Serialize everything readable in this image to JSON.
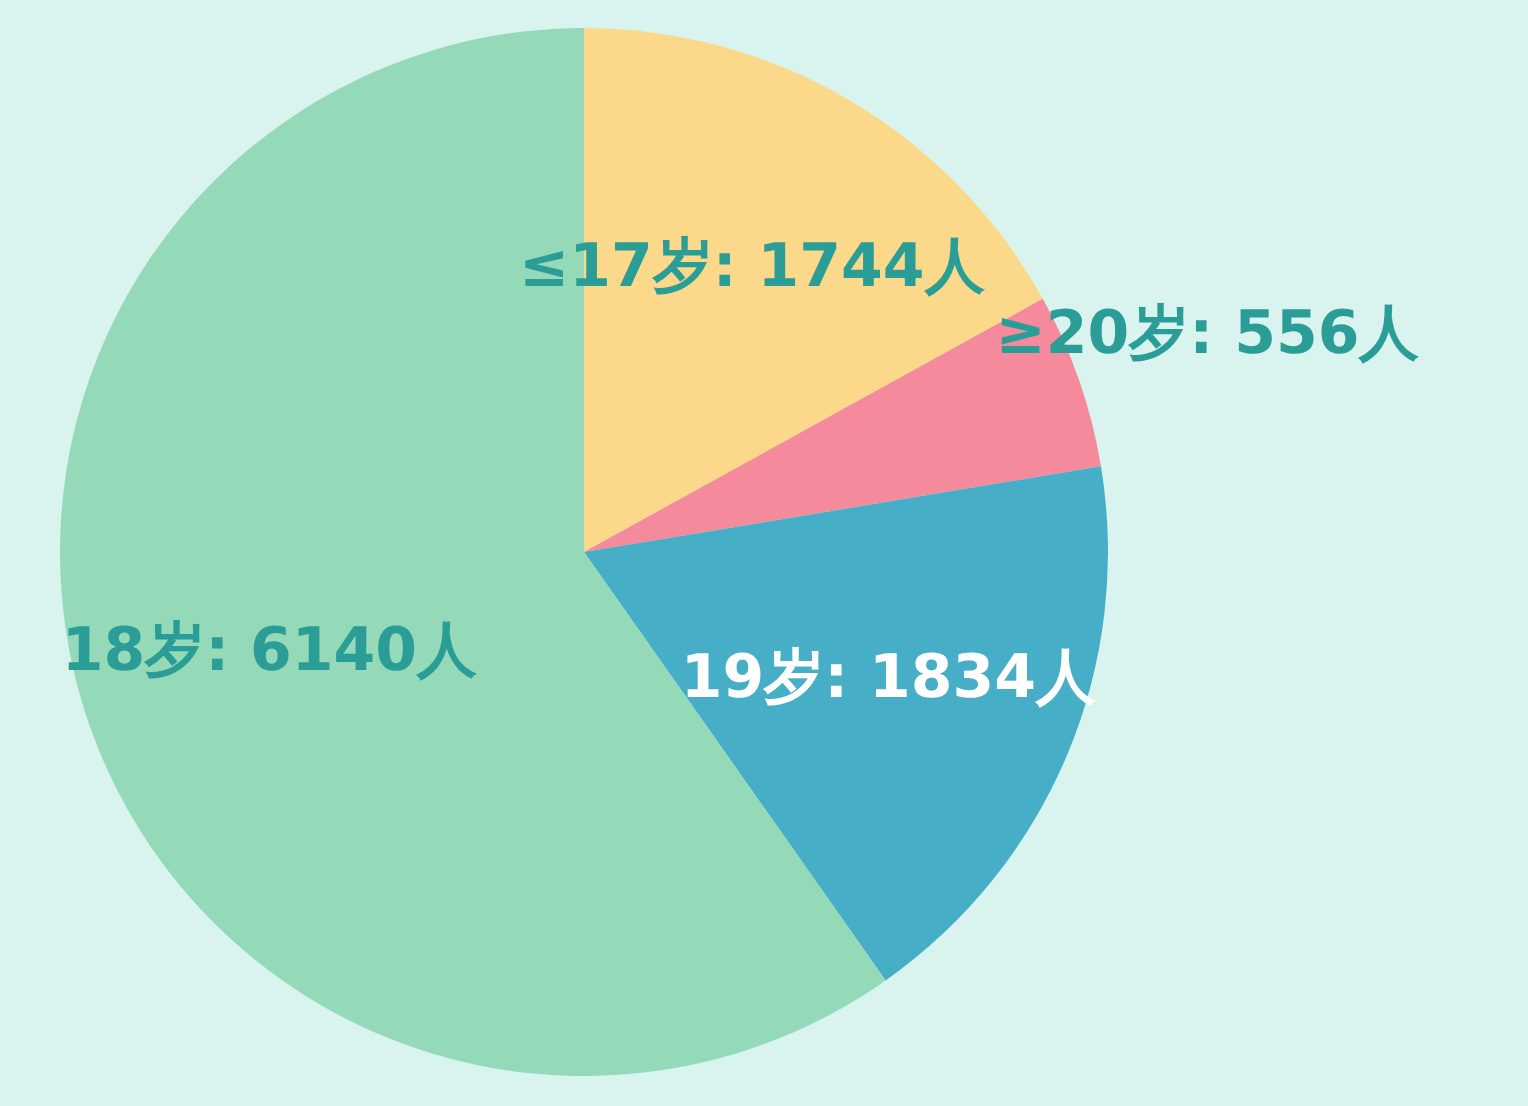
{
  "chart_data": {
    "type": "pie",
    "categories": [
      "≤17岁",
      "≥20岁",
      "19岁",
      "18岁"
    ],
    "values": [
      1744,
      556,
      1834,
      6140
    ],
    "colors": [
      "#fcd98a",
      "#f48a9b",
      "#46aec6",
      "#94dab9"
    ],
    "value_labels": [
      "1744人",
      "556人",
      "1834人",
      "6140人"
    ]
  }
}
